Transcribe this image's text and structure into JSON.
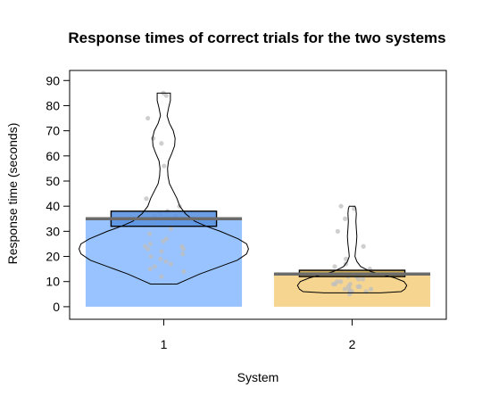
{
  "chart_data": {
    "type": "bar",
    "title": "Response times of correct trials for the two systems",
    "xlabel": "System",
    "ylabel": "Response time (seconds)",
    "categories": [
      "1",
      "2"
    ],
    "values": [
      35,
      13
    ],
    "ylim": [
      -5,
      94
    ],
    "yticks": [
      0,
      10,
      20,
      30,
      40,
      50,
      60,
      70,
      80,
      90
    ],
    "grid": false,
    "legend": "none",
    "colors": {
      "bar": [
        "#99c3ff",
        "#f5d590"
      ],
      "interval": [
        "#5b93e0",
        "#c9a646"
      ],
      "mean_line": "#6b6b6b",
      "points": "#bfbfbf",
      "outline": "#000000"
    },
    "intervals": [
      {
        "category": "1",
        "low": 32,
        "high": 38
      },
      {
        "category": "2",
        "low": 12,
        "high": 14.5
      }
    ],
    "violins": [
      {
        "category": "1",
        "profile": [
          [
            9,
            0.14
          ],
          [
            10,
            0.2
          ],
          [
            13,
            0.38
          ],
          [
            16,
            0.6
          ],
          [
            18.5,
            0.78
          ],
          [
            21,
            0.88
          ],
          [
            23,
            0.9
          ],
          [
            25,
            0.88
          ],
          [
            27,
            0.79
          ],
          [
            30,
            0.6
          ],
          [
            32,
            0.45
          ],
          [
            34,
            0.33
          ],
          [
            37,
            0.23
          ],
          [
            40,
            0.17
          ],
          [
            43,
            0.14
          ],
          [
            46,
            0.1
          ],
          [
            49,
            0.06
          ],
          [
            52,
            0.045
          ],
          [
            55,
            0.04
          ],
          [
            58,
            0.05
          ],
          [
            61,
            0.085
          ],
          [
            64,
            0.115
          ],
          [
            67,
            0.12
          ],
          [
            70,
            0.1
          ],
          [
            73,
            0.06
          ],
          [
            76,
            0.035
          ],
          [
            79,
            0.05
          ],
          [
            82,
            0.07
          ],
          [
            85,
            0.07
          ]
        ]
      },
      {
        "category": "2",
        "profile": [
          [
            5.5,
            0.3
          ],
          [
            6,
            0.52
          ],
          [
            7,
            0.56
          ],
          [
            8.5,
            0.58
          ],
          [
            10,
            0.55
          ],
          [
            11.5,
            0.45
          ],
          [
            13,
            0.3
          ],
          [
            14,
            0.2
          ],
          [
            15,
            0.14
          ],
          [
            16,
            0.09
          ],
          [
            18,
            0.05
          ],
          [
            20,
            0.03
          ],
          [
            22,
            0.035
          ],
          [
            25,
            0.045
          ],
          [
            28,
            0.05
          ],
          [
            31,
            0.045
          ],
          [
            34,
            0.04
          ],
          [
            37,
            0.045
          ],
          [
            39,
            0.04
          ],
          [
            40,
            0.03
          ]
        ]
      }
    ],
    "points": [
      {
        "category": "1",
        "y": [
          85,
          84,
          75,
          67,
          65,
          56,
          43,
          40,
          38,
          37,
          36,
          36,
          35,
          34,
          33,
          33,
          31,
          29,
          27,
          26,
          25,
          24,
          24,
          23,
          23,
          22,
          21,
          20,
          19,
          18,
          17,
          16,
          15,
          14,
          12
        ]
      },
      {
        "category": "2",
        "y": [
          40,
          39,
          35,
          30,
          24,
          19,
          17,
          16,
          15,
          14,
          14,
          13,
          13,
          12,
          12,
          11,
          11,
          10,
          10,
          9,
          9,
          9,
          8,
          8,
          8,
          7,
          7,
          7,
          6,
          6,
          6,
          6,
          5
        ]
      }
    ]
  }
}
